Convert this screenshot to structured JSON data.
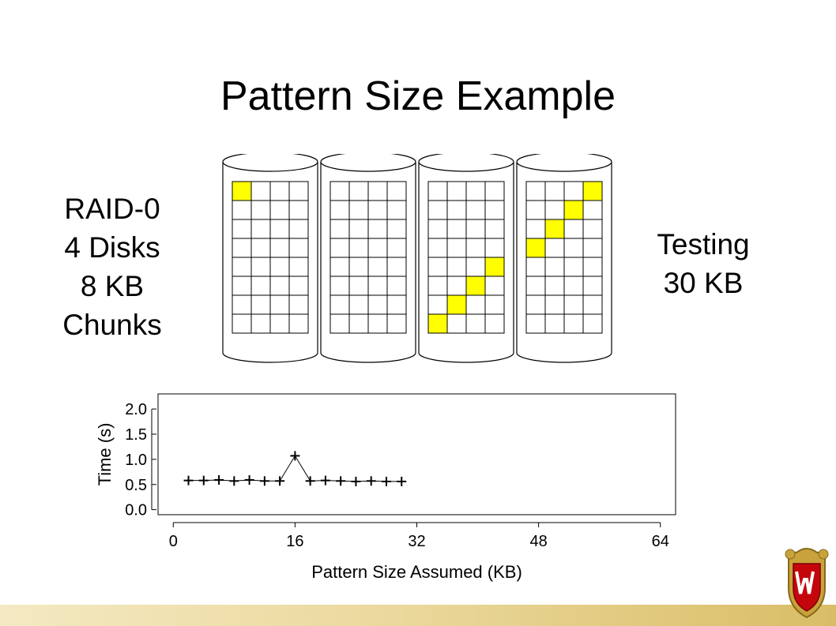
{
  "slide": {
    "title": "Pattern Size Example",
    "left_label": [
      "RAID-0",
      "4 Disks",
      "8 KB",
      "Chunks"
    ],
    "right_label": [
      "Testing",
      "30 KB"
    ]
  },
  "diagram": {
    "disk_count": 4,
    "grid_columns": 4,
    "grid_rows": 8,
    "highlight_color": "#ffff00",
    "highlighted_cells": [
      {
        "disk": 0,
        "row": 0,
        "col": 0
      },
      {
        "disk": 2,
        "row": 4,
        "col": 3
      },
      {
        "disk": 2,
        "row": 5,
        "col": 2
      },
      {
        "disk": 2,
        "row": 6,
        "col": 1
      },
      {
        "disk": 2,
        "row": 7,
        "col": 0
      },
      {
        "disk": 3,
        "row": 0,
        "col": 3
      },
      {
        "disk": 3,
        "row": 1,
        "col": 2
      },
      {
        "disk": 3,
        "row": 2,
        "col": 1
      },
      {
        "disk": 3,
        "row": 3,
        "col": 0
      }
    ]
  },
  "chart_data": {
    "type": "line",
    "xlabel": "Pattern Size Assumed (KB)",
    "ylabel": "Time (s)",
    "xlim": [
      -2,
      66
    ],
    "ylim": [
      -0.1,
      2.3
    ],
    "x_ticks": [
      "0",
      "16",
      "32",
      "48",
      "64"
    ],
    "x_tick_values": [
      0,
      16,
      32,
      48,
      64
    ],
    "y_ticks": [
      "0.0",
      "0.5",
      "1.0",
      "1.5",
      "2.0"
    ],
    "y_tick_values": [
      0.0,
      0.5,
      1.0,
      1.5,
      2.0
    ],
    "series": [
      {
        "marker": "+",
        "x": [
          2,
          4,
          6,
          8,
          10,
          12,
          14,
          16,
          18,
          20,
          22,
          24,
          26,
          28,
          30
        ],
        "y": [
          0.58,
          0.58,
          0.59,
          0.57,
          0.59,
          0.57,
          0.57,
          1.07,
          0.57,
          0.58,
          0.57,
          0.56,
          0.57,
          0.56,
          0.56
        ]
      }
    ],
    "grid": false
  },
  "colors": {
    "footer_gradient_start": "#f4e9c2",
    "footer_gradient_end": "#d9bd66",
    "crest_red": "#c5050c",
    "crest_gold": "#c8a33c"
  }
}
